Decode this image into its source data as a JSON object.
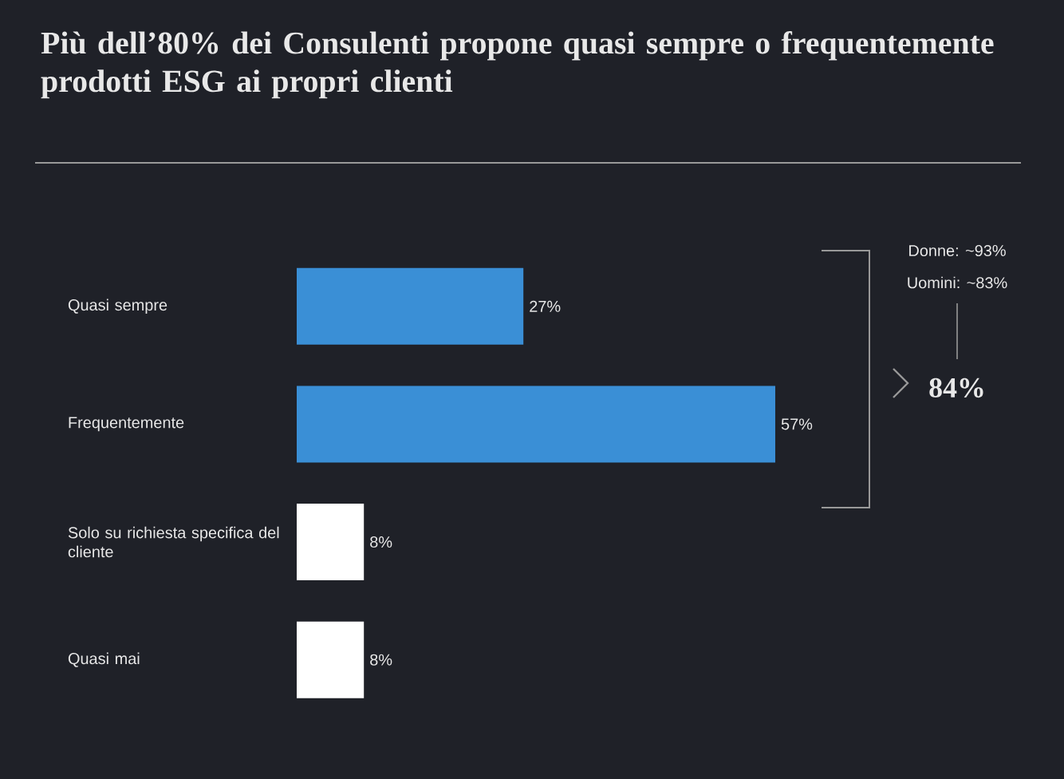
{
  "chart_data": {
    "type": "bar",
    "orientation": "horizontal",
    "title": "Più dell’80% dei Consulenti propone quasi sempre o frequentemente prodotti ESG ai propri clienti",
    "categories": [
      "Quasi sempre",
      "Frequentemente",
      "Solo su richiesta specifica del cliente",
      "Quasi mai"
    ],
    "values": [
      27,
      57,
      8,
      8
    ],
    "colors": [
      "#3a8fd6",
      "#3a8fd6",
      "#ffffff",
      "#ffffff"
    ],
    "value_labels": [
      "27%",
      "57%",
      "8%",
      "8%"
    ],
    "tick_labels": "y",
    "annotations": [
      "Donne: ~93%",
      "Uomini: ~83%",
      "84%"
    ]
  }
}
